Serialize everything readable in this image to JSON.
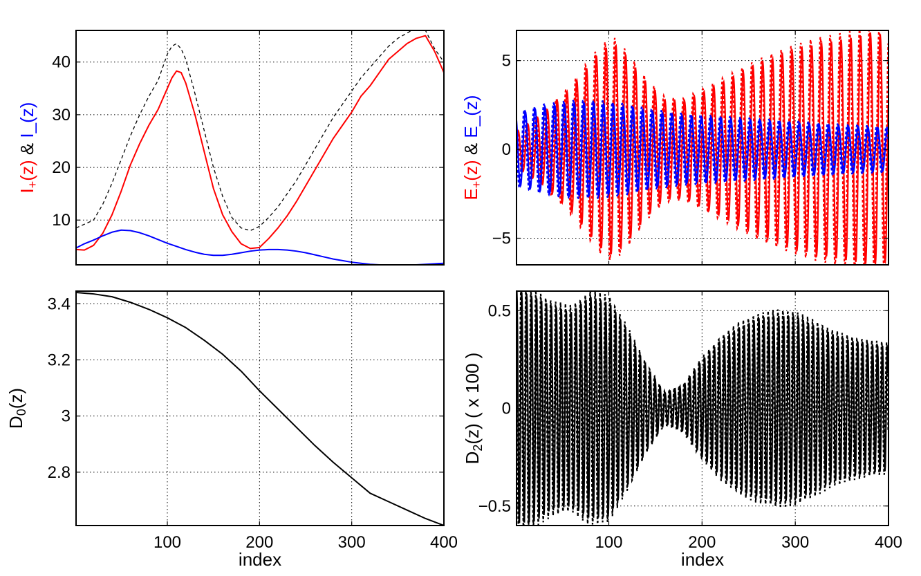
{
  "colors": {
    "red": "#ff0000",
    "blue": "#0000ff",
    "black": "#000000",
    "grid": "#000000"
  },
  "chart_data": [
    {
      "id": "p1",
      "type": "line",
      "xlabel": "",
      "ylabel_parts": [
        {
          "t": "I",
          "c": "red"
        },
        {
          "t": "+",
          "c": "red",
          "sub": true
        },
        {
          "t": "(z)",
          "c": "red"
        },
        {
          "t": "  &  ",
          "c": "black"
        },
        {
          "t": "I",
          "c": "blue"
        },
        {
          "t": "_",
          "c": "blue"
        },
        {
          "t": "(z)",
          "c": "blue"
        }
      ],
      "xlim": [
        1,
        400
      ],
      "ylim": [
        1.5,
        46
      ],
      "xticks": [
        100,
        200,
        300,
        400
      ],
      "xticklabels": [
        "",
        "",
        "",
        ""
      ],
      "yticks": [
        10,
        20,
        30,
        40
      ],
      "yticklabels": [
        "10",
        "20",
        "30",
        "40"
      ],
      "grid": true,
      "series": [
        {
          "color": "red",
          "style": "solid",
          "width": 2,
          "x": [
            1,
            10,
            20,
            30,
            40,
            50,
            60,
            70,
            80,
            90,
            100,
            105,
            110,
            115,
            120,
            130,
            140,
            150,
            160,
            170,
            180,
            190,
            200,
            210,
            220,
            230,
            240,
            250,
            260,
            270,
            280,
            290,
            300,
            310,
            320,
            330,
            340,
            350,
            360,
            370,
            380,
            390,
            400
          ],
          "y": [
            4.4,
            4.3,
            5.2,
            7.5,
            11,
            15.5,
            20.5,
            24.5,
            28,
            31,
            35,
            37,
            38.3,
            38,
            36,
            30,
            23,
            16,
            11,
            7.8,
            5.5,
            4.6,
            4.8,
            6.5,
            8.5,
            10.8,
            13.5,
            16.5,
            19.5,
            22.5,
            25.5,
            28,
            30.5,
            33.5,
            35.5,
            38,
            40.5,
            42,
            43.5,
            44.5,
            45,
            42,
            38
          ]
        },
        {
          "color": "black",
          "style": "dashed",
          "width": 1.3,
          "x": [
            1,
            10,
            20,
            30,
            40,
            50,
            60,
            70,
            80,
            90,
            100,
            105,
            110,
            115,
            120,
            130,
            140,
            150,
            160,
            170,
            180,
            190,
            200,
            210,
            220,
            230,
            240,
            250,
            260,
            270,
            280,
            290,
            300,
            310,
            320,
            330,
            340,
            350,
            360,
            370,
            380,
            390,
            400
          ],
          "y": [
            8.5,
            9.2,
            10,
            13,
            17,
            21.5,
            26,
            30,
            33.5,
            36.5,
            41.5,
            43,
            43.5,
            42.5,
            40.5,
            34,
            27,
            20,
            14.5,
            10.5,
            8.5,
            8,
            8.8,
            10.5,
            12.5,
            15,
            17.5,
            20.5,
            23.5,
            26.5,
            29.5,
            32,
            34.5,
            37,
            39,
            41,
            43,
            44.5,
            45.5,
            46.5,
            46,
            42.5,
            40
          ]
        },
        {
          "color": "blue",
          "style": "solid",
          "width": 2,
          "x": [
            1,
            10,
            20,
            30,
            40,
            50,
            60,
            70,
            80,
            90,
            100,
            110,
            120,
            130,
            140,
            150,
            160,
            170,
            180,
            190,
            200,
            210,
            220,
            230,
            240,
            250,
            260,
            270,
            280,
            290,
            300,
            310,
            320,
            330,
            340,
            350,
            360,
            370,
            380,
            390,
            400
          ],
          "y": [
            4.7,
            5.5,
            6.2,
            7,
            7.7,
            8.1,
            8,
            7.6,
            7,
            6.3,
            5.6,
            5,
            4.4,
            3.9,
            3.5,
            3.3,
            3.3,
            3.5,
            3.8,
            4.1,
            4.3,
            4.4,
            4.4,
            4.3,
            4.1,
            3.8,
            3.4,
            3,
            2.6,
            2.3,
            2,
            1.8,
            1.6,
            1.5,
            1.5,
            1.5,
            1.5,
            1.5,
            1.6,
            1.7,
            1.8
          ]
        }
      ]
    },
    {
      "id": "p2",
      "type": "line",
      "xlabel": "",
      "ylabel_parts": [
        {
          "t": "E",
          "c": "red"
        },
        {
          "t": "+",
          "c": "red",
          "sub": true
        },
        {
          "t": "(z)",
          "c": "red"
        },
        {
          "t": "  &  ",
          "c": "black"
        },
        {
          "t": "E_(z)",
          "c": "blue"
        }
      ],
      "xlim": [
        1,
        400
      ],
      "ylim": [
        -6.5,
        6.7
      ],
      "xticks": [
        100,
        200,
        300,
        400
      ],
      "xticklabels": [
        "",
        "",
        "",
        ""
      ],
      "yticks": [
        -5,
        0,
        5
      ],
      "yticklabels": [
        "−5",
        "0",
        "5"
      ],
      "grid": true,
      "oscillations": [
        {
          "color": "red",
          "period": 10.5,
          "phase": 0.0,
          "dotted_shift": 1.2,
          "env_x": [
            1,
            30,
            60,
            90,
            105,
            120,
            140,
            160,
            180,
            200,
            230,
            260,
            290,
            320,
            350,
            380,
            400
          ],
          "env_y": [
            1.0,
            2.0,
            3.5,
            5.5,
            6.0,
            5.2,
            3.8,
            2.8,
            2.7,
            3.2,
            4.0,
            4.8,
            5.4,
            5.9,
            6.2,
            6.5,
            6.3
          ]
        },
        {
          "color": "blue",
          "period": 10.5,
          "phase": 1.6,
          "dotted_shift": 1.2,
          "env_x": [
            1,
            30,
            60,
            90,
            120,
            150,
            180,
            210,
            240,
            270,
            300,
            330,
            360,
            400
          ],
          "env_y": [
            2.0,
            2.4,
            2.6,
            2.6,
            2.4,
            2.1,
            1.9,
            1.8,
            1.7,
            1.6,
            1.5,
            1.4,
            1.3,
            1.2
          ]
        }
      ]
    },
    {
      "id": "p3",
      "type": "line",
      "xlabel": "index",
      "ylabel_parts": [
        {
          "t": "D",
          "c": "black"
        },
        {
          "t": "0",
          "c": "black",
          "sub": true
        },
        {
          "t": "(z)",
          "c": "black"
        }
      ],
      "xlim": [
        1,
        400
      ],
      "ylim": [
        2.61,
        3.445
      ],
      "xticks": [
        100,
        200,
        300,
        400
      ],
      "xticklabels": [
        "100",
        "200",
        "300",
        "400"
      ],
      "yticks": [
        2.8,
        3.0,
        3.2,
        3.4
      ],
      "yticklabels": [
        "2.8",
        "3",
        "3.2",
        "3.4"
      ],
      "grid": true,
      "series": [
        {
          "color": "black",
          "style": "solid",
          "width": 2,
          "x": [
            1,
            20,
            40,
            60,
            80,
            100,
            120,
            140,
            160,
            180,
            200,
            220,
            240,
            260,
            280,
            300,
            320,
            340,
            360,
            380,
            400
          ],
          "y": [
            3.44,
            3.435,
            3.425,
            3.405,
            3.38,
            3.35,
            3.315,
            3.27,
            3.22,
            3.16,
            3.09,
            3.025,
            2.96,
            2.895,
            2.835,
            2.78,
            2.725,
            2.695,
            2.665,
            2.635,
            2.61
          ]
        }
      ]
    },
    {
      "id": "p4",
      "type": "line",
      "xlabel": "index",
      "ylabel_parts": [
        {
          "t": "D",
          "c": "black"
        },
        {
          "t": "2",
          "c": "black",
          "sub": true
        },
        {
          "t": "(z) ( x 100 )",
          "c": "black"
        }
      ],
      "xlim": [
        1,
        400
      ],
      "ylim": [
        -0.6,
        0.6
      ],
      "xticks": [
        100,
        200,
        300,
        400
      ],
      "xticklabels": [
        "100",
        "200",
        "300",
        "400"
      ],
      "yticks": [
        -0.5,
        0,
        0.5
      ],
      "yticklabels": [
        "−0.5",
        "0",
        "0.5"
      ],
      "grid": true,
      "oscillations": [
        {
          "color": "black",
          "period": 5.3,
          "phase": 0.0,
          "dotted_shift": 0.8,
          "env_x": [
            1,
            20,
            40,
            60,
            80,
            100,
            120,
            140,
            160,
            180,
            200,
            220,
            240,
            260,
            280,
            300,
            320,
            340,
            360,
            380,
            400
          ],
          "env_y": [
            0.6,
            0.58,
            0.52,
            0.5,
            0.57,
            0.55,
            0.4,
            0.22,
            0.08,
            0.12,
            0.25,
            0.35,
            0.42,
            0.46,
            0.48,
            0.47,
            0.43,
            0.38,
            0.35,
            0.33,
            0.32
          ]
        }
      ]
    }
  ]
}
